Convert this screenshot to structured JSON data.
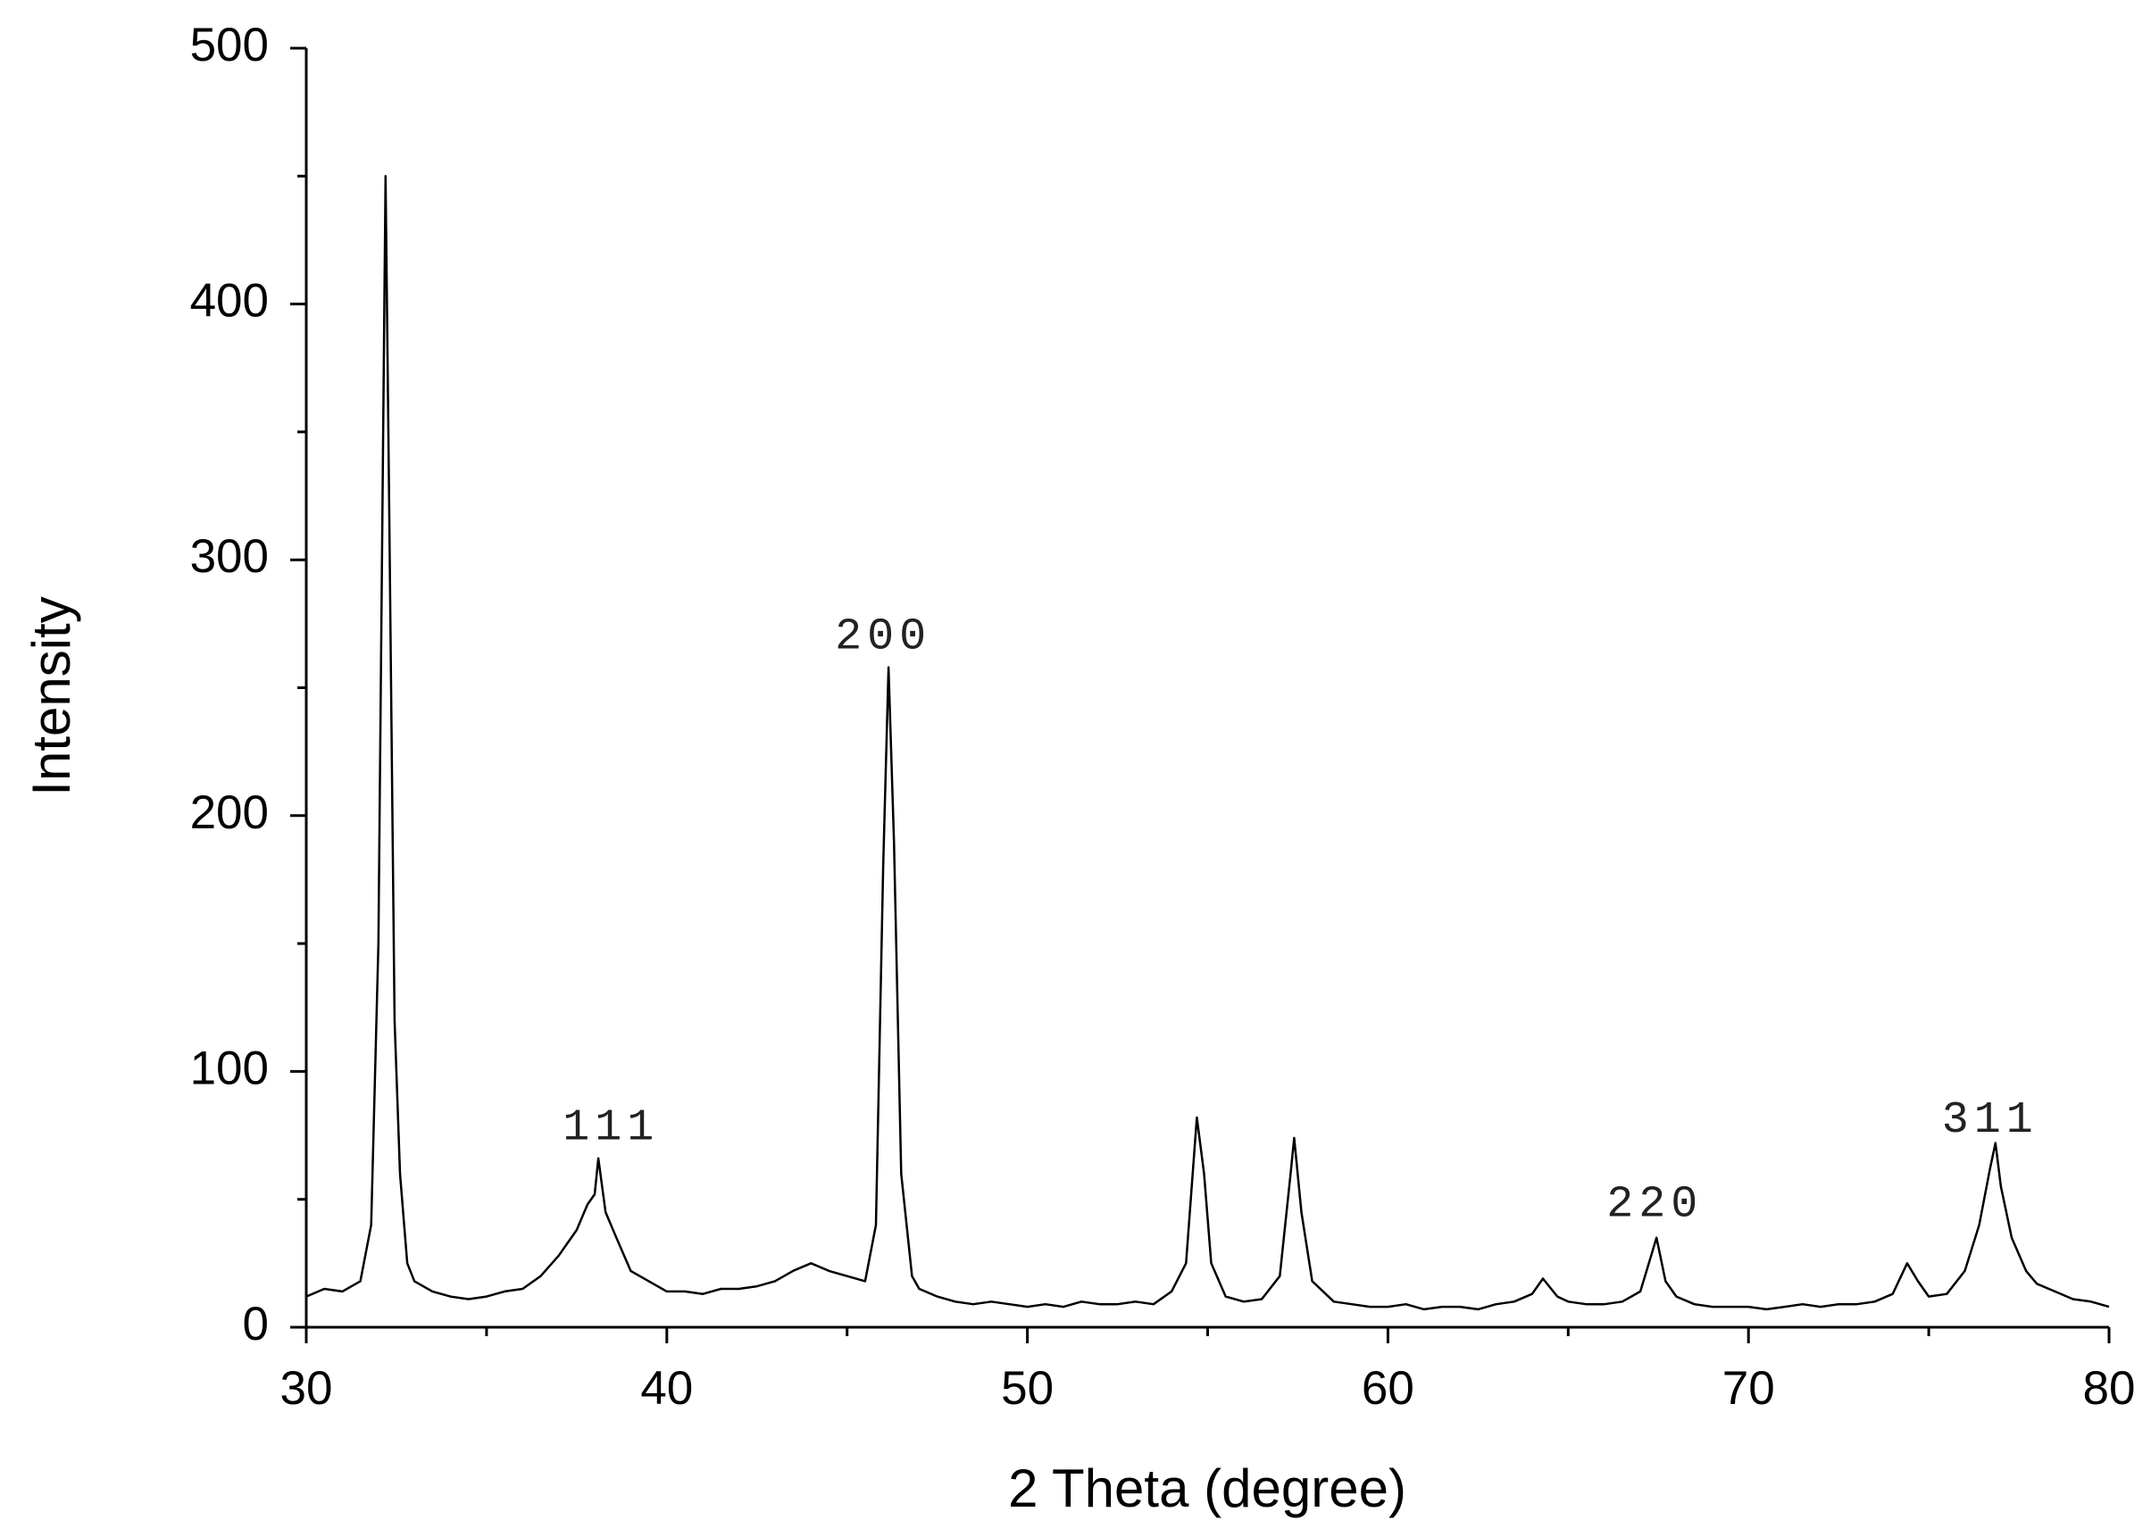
{
  "chart_data": {
    "type": "line",
    "xlabel": "2 Theta (degree)",
    "ylabel": "Intensity",
    "xlim": [
      30,
      80
    ],
    "xticks": [
      30,
      40,
      50,
      60,
      70,
      80
    ],
    "xminorticks": [
      35,
      45,
      55,
      65,
      75
    ],
    "ylim": [
      0,
      500
    ],
    "yticks": [
      0,
      100,
      200,
      300,
      400,
      500
    ],
    "yminorticks": [
      50,
      150,
      250,
      350,
      450
    ],
    "series": [
      {
        "color": "#000000",
        "x": [
          30,
          30.5,
          31,
          31.5,
          31.8,
          32.0,
          32.1,
          32.2,
          32.3,
          32.45,
          32.6,
          32.8,
          33,
          33.5,
          34,
          34.5,
          35,
          35.5,
          36,
          36.5,
          37,
          37.5,
          37.8,
          38.0,
          38.1,
          38.3,
          38.6,
          39,
          39.5,
          40,
          40.5,
          41,
          41.5,
          42,
          42.5,
          43,
          43.5,
          44,
          44.5,
          45,
          45.5,
          45.8,
          46.0,
          46.15,
          46.3,
          46.5,
          46.8,
          47,
          47.5,
          48,
          48.5,
          49,
          49.5,
          50,
          50.5,
          51,
          51.5,
          52,
          52.5,
          53,
          53.5,
          54,
          54.4,
          54.7,
          54.9,
          55.1,
          55.5,
          56,
          56.5,
          57,
          57.3,
          57.4,
          57.6,
          57.9,
          58.5,
          59,
          59.5,
          60,
          60.5,
          61,
          61.5,
          62,
          62.5,
          63,
          63.5,
          64,
          64.3,
          64.7,
          65,
          65.5,
          66,
          66.5,
          67,
          67.3,
          67.45,
          67.7,
          68,
          68.5,
          69,
          69.5,
          70,
          70.5,
          71,
          71.5,
          72,
          72.5,
          73,
          73.5,
          74,
          74.4,
          74.7,
          75,
          75.5,
          76,
          76.4,
          76.7,
          76.85,
          77,
          77.3,
          77.7,
          78,
          78.5,
          79,
          79.5,
          80
        ],
        "values": [
          12,
          15,
          14,
          18,
          40,
          150,
          300,
          450,
          320,
          120,
          60,
          25,
          18,
          14,
          12,
          11,
          12,
          14,
          15,
          20,
          28,
          38,
          48,
          52,
          66,
          45,
          35,
          22,
          18,
          14,
          14,
          13,
          15,
          15,
          16,
          18,
          22,
          25,
          22,
          20,
          18,
          40,
          180,
          258,
          190,
          60,
          20,
          15,
          12,
          10,
          9,
          10,
          9,
          8,
          9,
          8,
          10,
          9,
          9,
          10,
          9,
          14,
          25,
          82,
          60,
          25,
          12,
          10,
          11,
          20,
          60,
          74,
          45,
          18,
          10,
          9,
          8,
          8,
          9,
          7,
          8,
          8,
          7,
          9,
          10,
          13,
          19,
          12,
          10,
          9,
          9,
          10,
          14,
          28,
          35,
          18,
          12,
          9,
          8,
          8,
          8,
          7,
          8,
          9,
          8,
          9,
          9,
          10,
          13,
          25,
          18,
          12,
          13,
          22,
          40,
          62,
          72,
          55,
          35,
          22,
          17,
          14,
          11,
          10,
          8
        ]
      }
    ],
    "annotations": [
      {
        "text": "111",
        "x": 38.45,
        "y": 78
      },
      {
        "text": "200",
        "x": 46.0,
        "y": 270
      },
      {
        "text": "220",
        "x": 67.4,
        "y": 48
      },
      {
        "text": "311",
        "x": 76.7,
        "y": 81
      }
    ]
  }
}
